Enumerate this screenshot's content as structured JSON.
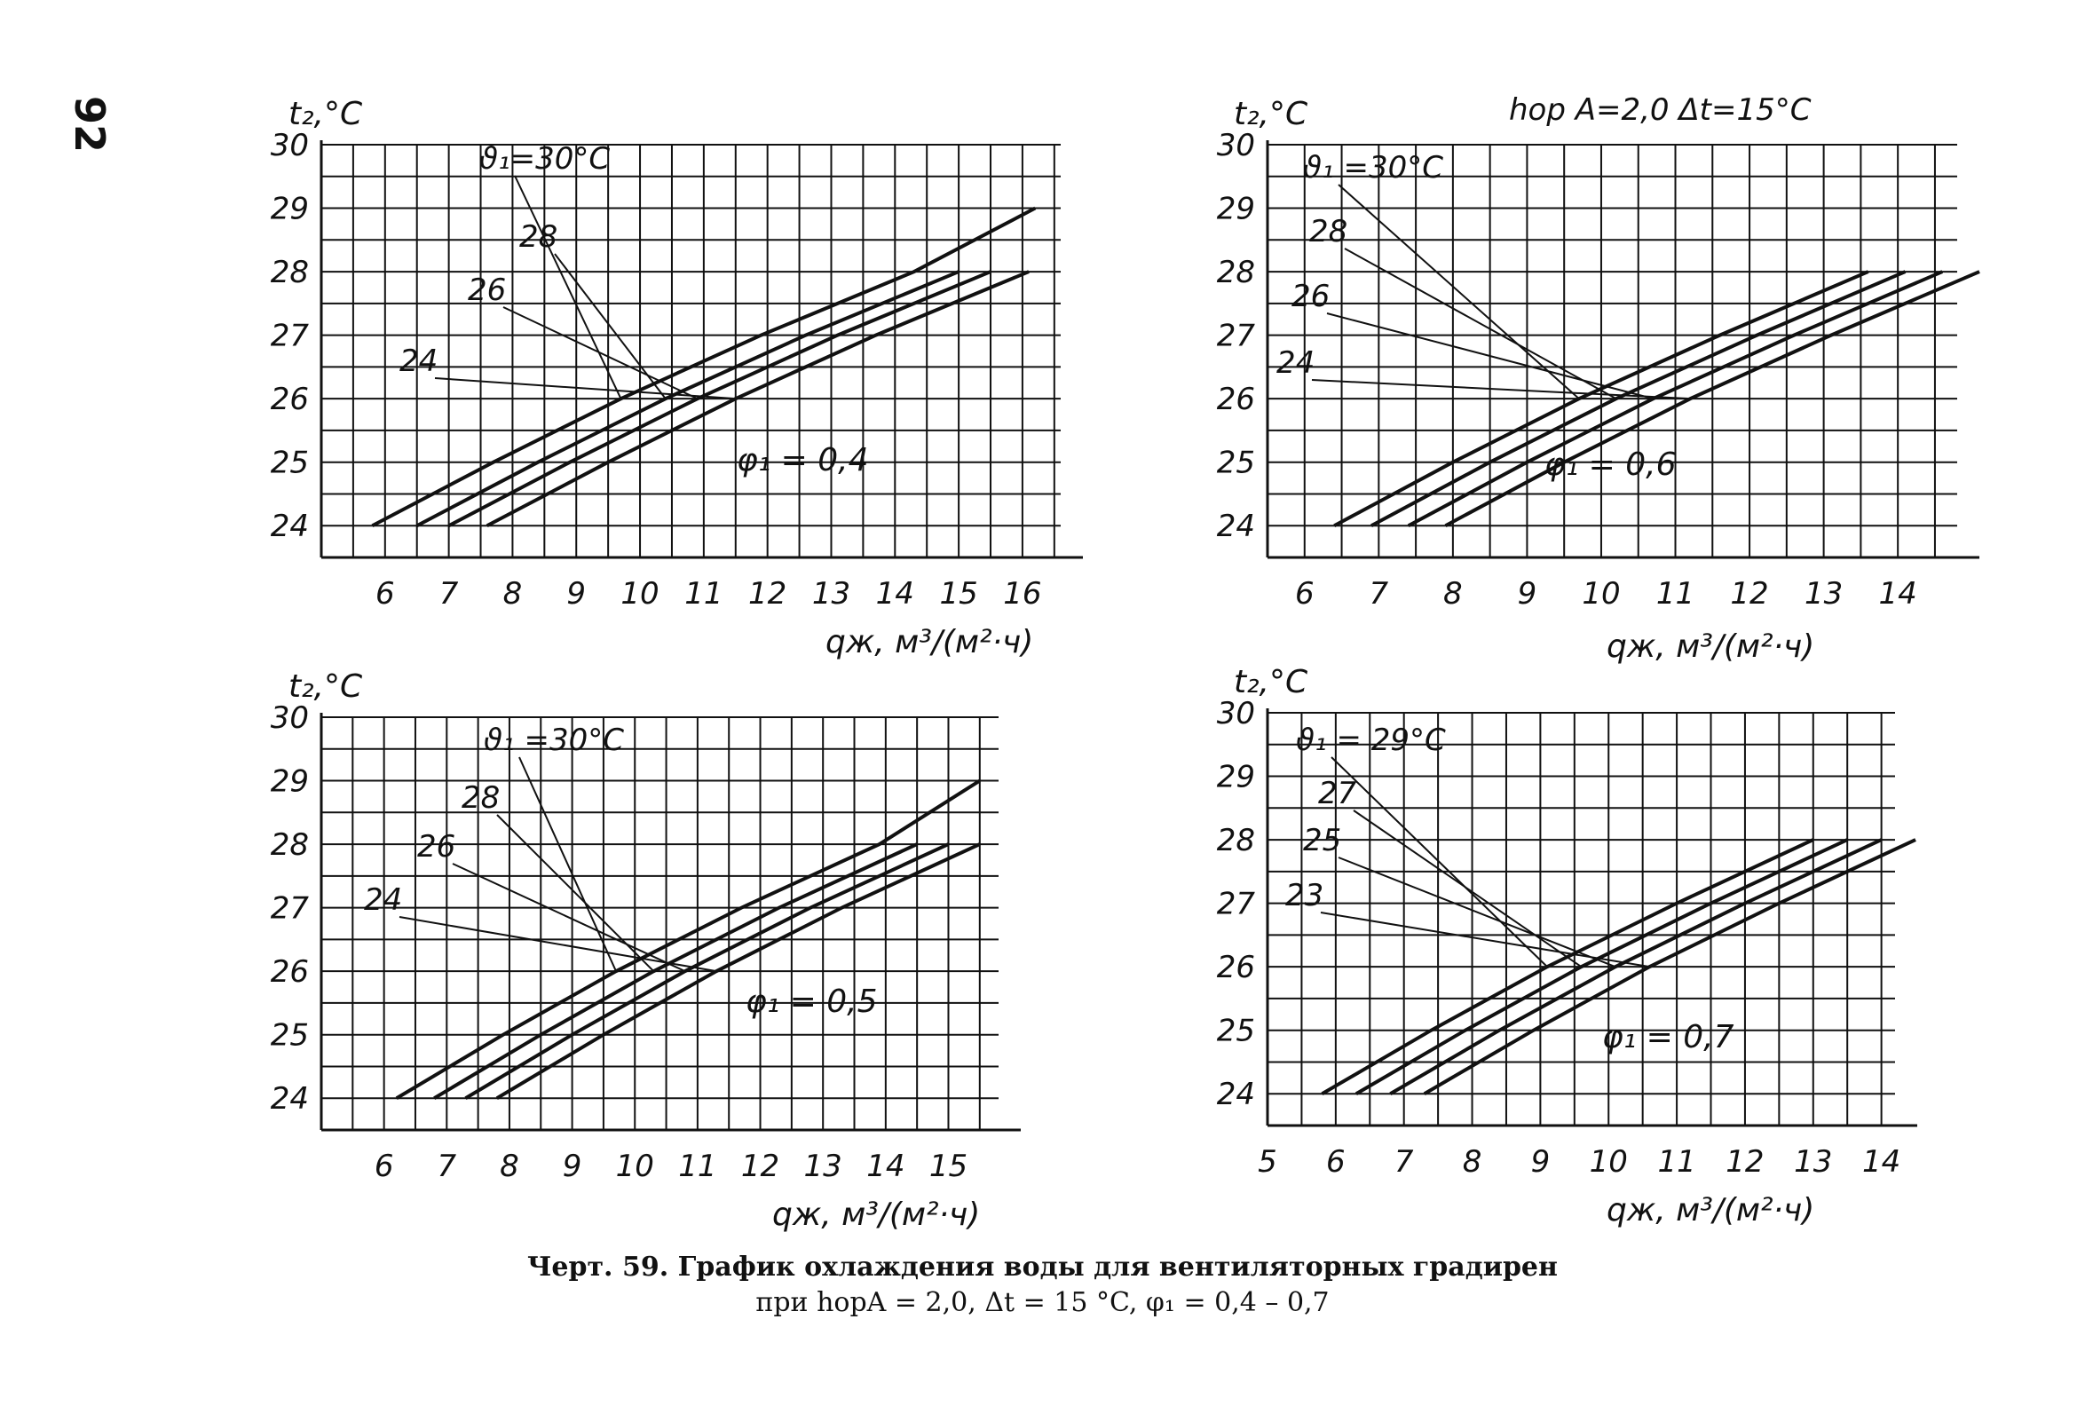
{
  "page_number": "92",
  "figure_header": "hор A=2,0  Δt=15°C",
  "caption": {
    "line1": "Черт. 59. График охлаждения воды для вентиляторных градирен",
    "line2": "при hорA = 2,0, Δt = 15 °C, φ₁ = 0,4 – 0,7"
  },
  "colors": {
    "ink": "#111111",
    "background": "#ffffff"
  },
  "chart_data": [
    {
      "type": "line",
      "ylabel": "t₂,°C",
      "xlabel": "qж, м³/(м²·ч)",
      "xlim": [
        5.0,
        16.6
      ],
      "ylim": [
        23.5,
        30.0
      ],
      "x_ticks": [
        6,
        7,
        8,
        9,
        10,
        11,
        12,
        13,
        14,
        15,
        16
      ],
      "y_ticks": [
        24,
        25,
        26,
        27,
        28,
        29,
        30
      ],
      "annotation": "φ₁ = 0,4",
      "series": [
        {
          "name": "ϑ₁=30°C",
          "x": [
            5.8,
            7.7,
            9.7,
            11.9,
            14.3,
            16.2
          ],
          "y": [
            24,
            25,
            26,
            27,
            28,
            29
          ]
        },
        {
          "name": "28",
          "x": [
            6.5,
            8.4,
            10.4,
            12.6,
            15.0
          ],
          "y": [
            24,
            25,
            26,
            27,
            28
          ]
        },
        {
          "name": "26",
          "x": [
            7.0,
            8.9,
            10.9,
            13.1,
            15.5
          ],
          "y": [
            24,
            25,
            26,
            27,
            28
          ]
        },
        {
          "name": "24",
          "x": [
            7.6,
            9.5,
            11.5,
            13.7,
            16.1
          ],
          "y": [
            24,
            25,
            26,
            27,
            28
          ]
        }
      ]
    },
    {
      "type": "line",
      "ylabel": "t₂,°C",
      "xlabel": "qж, м³/(м²·ч)",
      "xlim": [
        5.5,
        14.8
      ],
      "ylim": [
        23.5,
        30.0
      ],
      "x_ticks": [
        6,
        7,
        8,
        9,
        10,
        11,
        12,
        13,
        14
      ],
      "y_ticks": [
        24,
        25,
        26,
        27,
        28,
        29,
        30
      ],
      "annotation": "φ₁ = 0,6",
      "series": [
        {
          "name": "ϑ₁ =30°C",
          "x": [
            6.4,
            8.0,
            9.7,
            11.6,
            13.6
          ],
          "y": [
            24,
            25,
            26,
            27,
            28
          ]
        },
        {
          "name": "28",
          "x": [
            6.9,
            8.5,
            10.2,
            12.1,
            14.1
          ],
          "y": [
            24,
            25,
            26,
            27,
            28
          ]
        },
        {
          "name": "26",
          "x": [
            7.4,
            9.0,
            10.7,
            12.6,
            14.6
          ],
          "y": [
            24,
            25,
            26,
            27,
            28
          ]
        },
        {
          "name": "24",
          "x": [
            7.9,
            9.5,
            11.2,
            13.1,
            15.1
          ],
          "y": [
            24,
            25,
            26,
            27,
            28
          ]
        }
      ]
    },
    {
      "type": "line",
      "ylabel": "t₂,°C",
      "xlabel": "qж, м³/(м²·ч)",
      "xlim": [
        5.0,
        15.8
      ],
      "ylim": [
        23.5,
        30.0
      ],
      "x_ticks": [
        6,
        7,
        8,
        9,
        10,
        11,
        12,
        13,
        14,
        15
      ],
      "y_ticks": [
        24,
        25,
        26,
        27,
        28,
        29,
        30
      ],
      "annotation": "φ₁ = 0,5",
      "series": [
        {
          "name": "ϑ₁ =30°C",
          "x": [
            6.2,
            7.9,
            9.7,
            11.7,
            13.9,
            15.5
          ],
          "y": [
            24,
            25,
            26,
            27,
            28,
            29
          ]
        },
        {
          "name": "28",
          "x": [
            6.8,
            8.5,
            10.3,
            12.3,
            14.5
          ],
          "y": [
            24,
            25,
            26,
            27,
            28
          ]
        },
        {
          "name": "26",
          "x": [
            7.3,
            9.0,
            10.8,
            12.8,
            15.0
          ],
          "y": [
            24,
            25,
            26,
            27,
            28
          ]
        },
        {
          "name": "24",
          "x": [
            7.8,
            9.5,
            11.3,
            13.3,
            15.5
          ],
          "y": [
            24,
            25,
            26,
            27,
            28
          ]
        }
      ]
    },
    {
      "type": "line",
      "ylabel": "t₂,°C",
      "xlabel": "qж, м³/(м²·ч)",
      "xlim": [
        5.0,
        14.2
      ],
      "ylim": [
        23.5,
        30.0
      ],
      "x_ticks": [
        5,
        6,
        7,
        8,
        9,
        10,
        11,
        12,
        13,
        14
      ],
      "y_ticks": [
        24,
        25,
        26,
        27,
        28,
        29,
        30
      ],
      "annotation": "φ₁ = 0,7",
      "series": [
        {
          "name": "ϑ₁ = 29°C",
          "x": [
            5.8,
            7.4,
            9.1,
            11.0,
            13.0
          ],
          "y": [
            24,
            25,
            26,
            27,
            28
          ]
        },
        {
          "name": "27",
          "x": [
            6.3,
            7.9,
            9.6,
            11.5,
            13.5
          ],
          "y": [
            24,
            25,
            26,
            27,
            28
          ]
        },
        {
          "name": "25",
          "x": [
            6.8,
            8.4,
            10.1,
            12.0,
            14.0
          ],
          "y": [
            24,
            25,
            26,
            27,
            28
          ]
        },
        {
          "name": "23",
          "x": [
            7.3,
            8.9,
            10.6,
            12.5,
            14.5
          ],
          "y": [
            24,
            25,
            26,
            27,
            28
          ]
        }
      ]
    }
  ]
}
